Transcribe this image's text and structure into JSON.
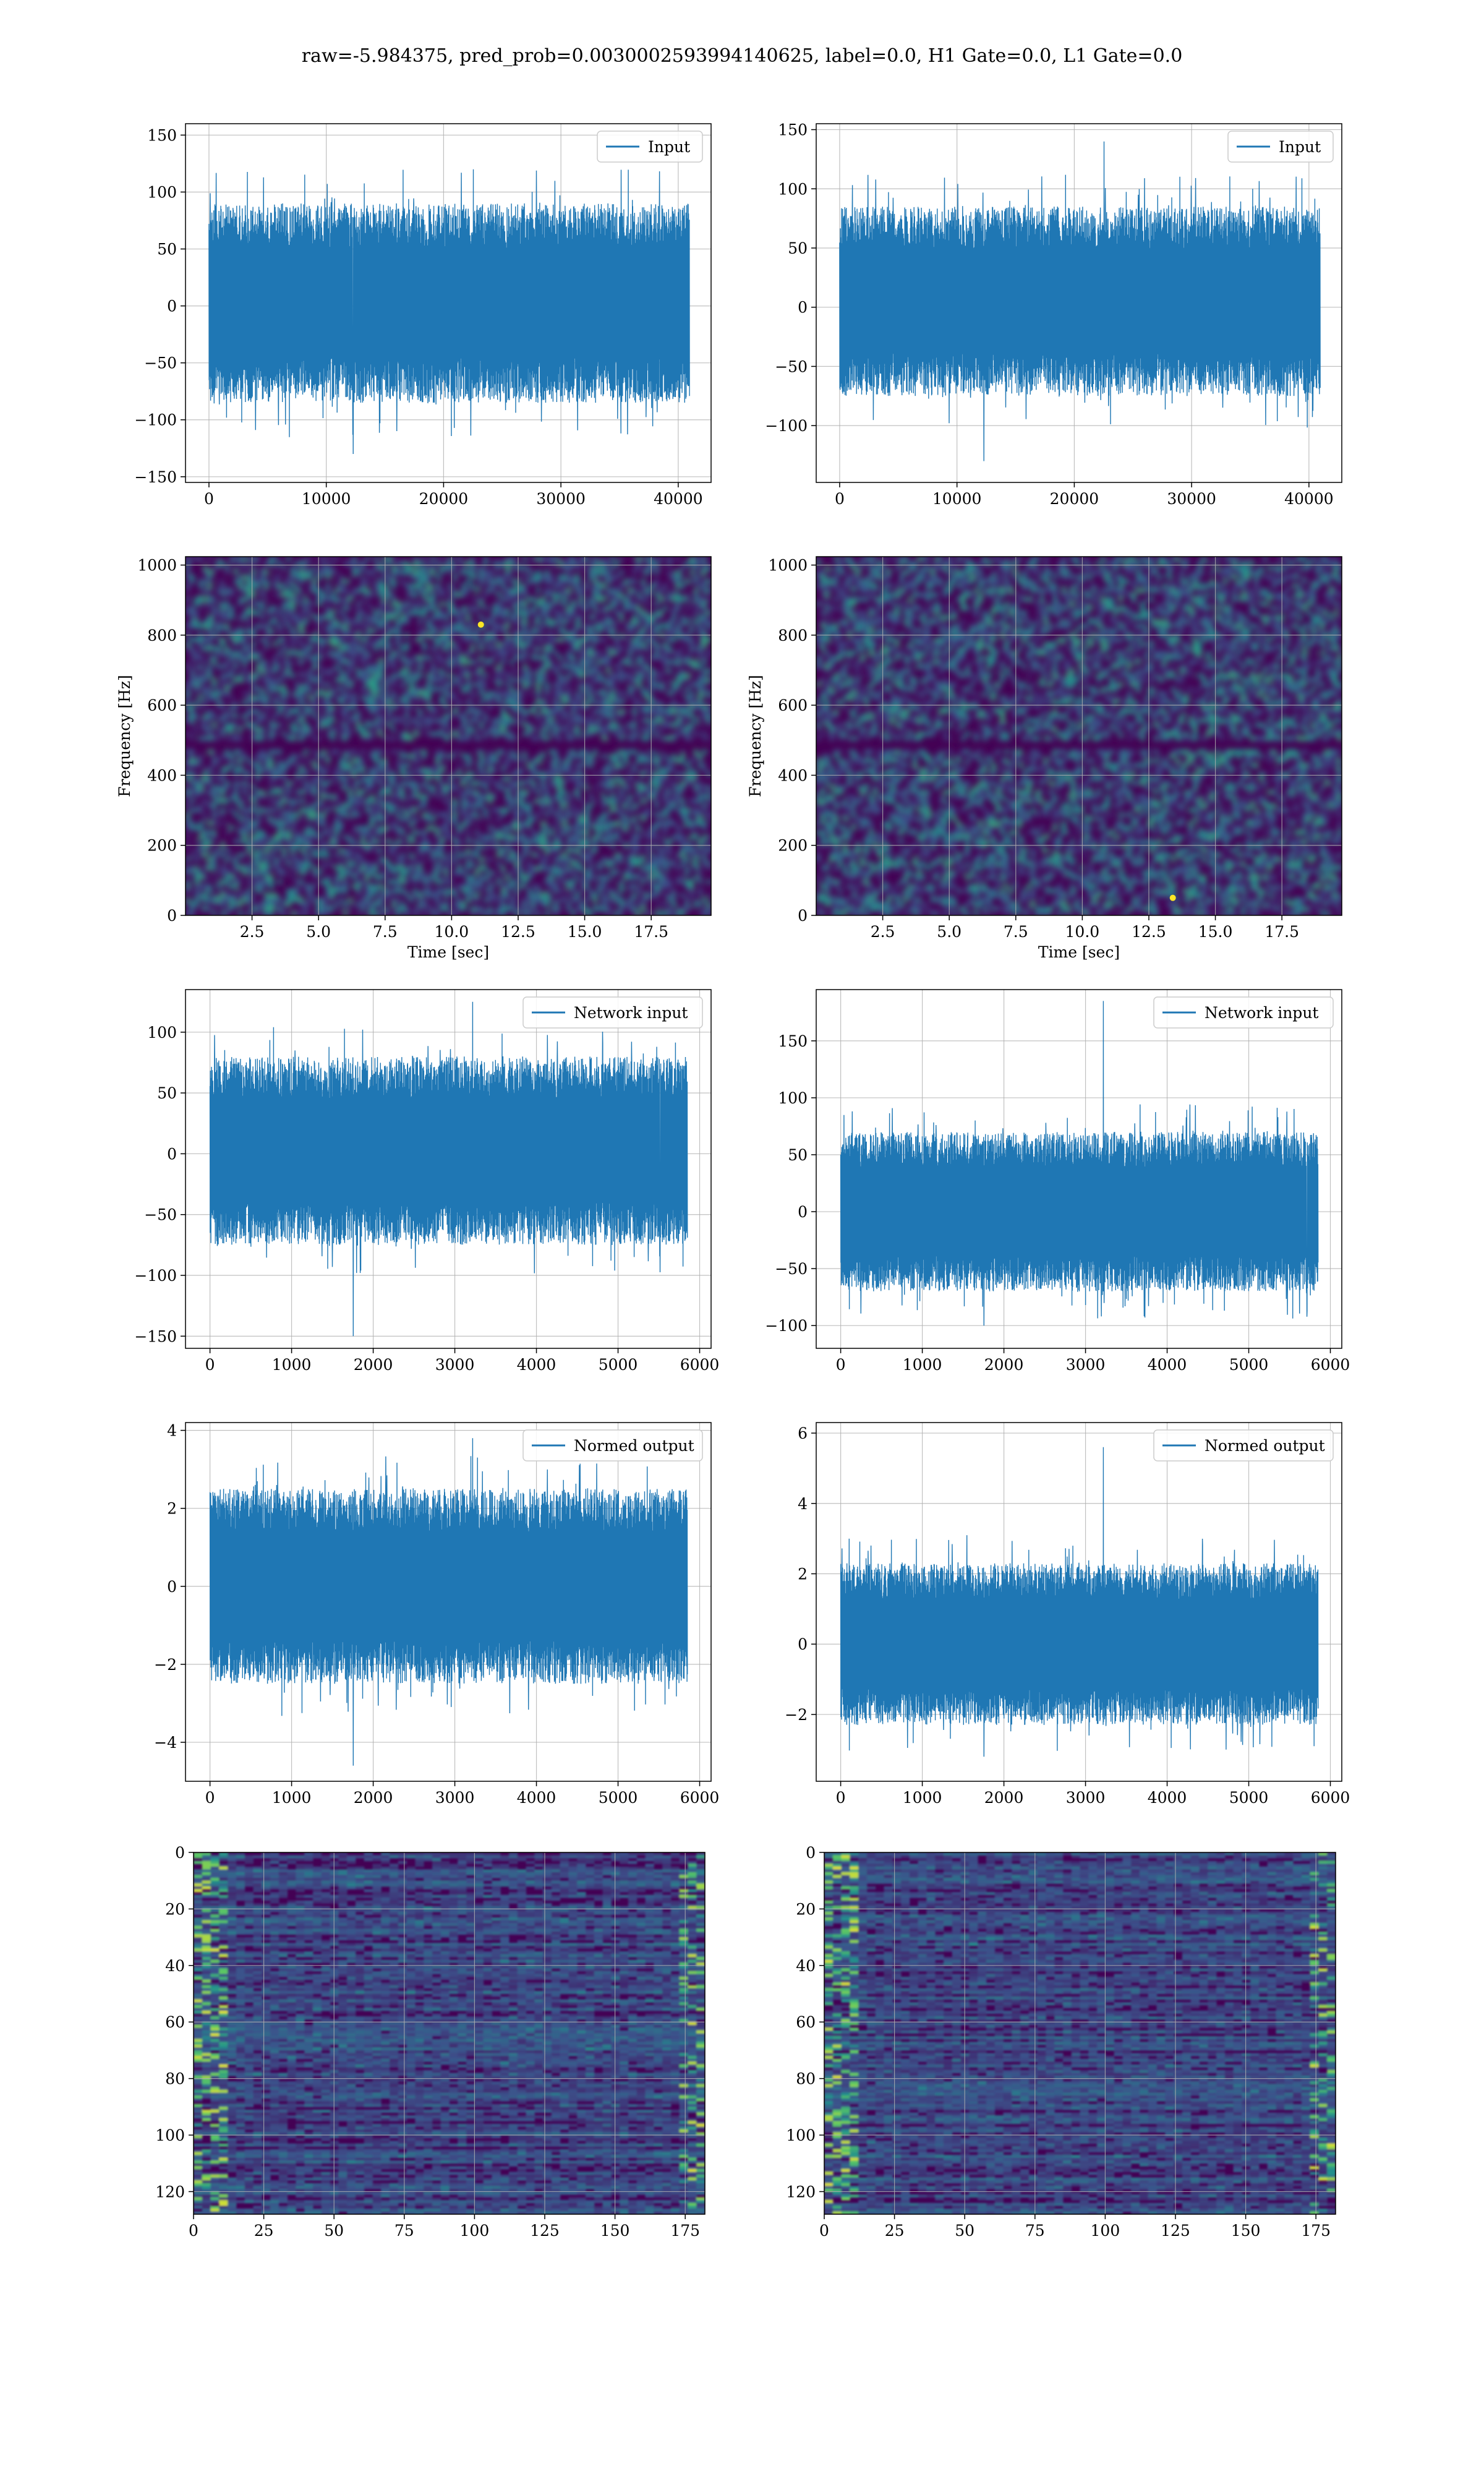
{
  "figure": {
    "suptitle": "raw=-5.984375, pred_prob=0.0030002593994140625, label=0.0, H1 Gate=0.0, L1 Gate=0.0"
  },
  "colors": {
    "line": "#1f77b4",
    "grid": "#b0b0b0",
    "viridis_low": "#440154",
    "viridis_mid": "#21918c",
    "viridis_high": "#fde725"
  },
  "chart_data": [
    {
      "id": "h1-input",
      "type": "line",
      "legend": "Input",
      "legend_pos": "upper right",
      "xlim": [
        -2000,
        42800
      ],
      "ylim": [
        -155,
        160
      ],
      "xticks": [
        0,
        10000,
        20000,
        30000,
        40000
      ],
      "yticks": [
        -150,
        -100,
        -50,
        0,
        50,
        100,
        150
      ],
      "x_range": [
        0,
        40960
      ],
      "n_points": 40960,
      "envelope": [
        -85,
        90
      ],
      "extremes": [
        120,
        -130
      ],
      "noise_sigma": 25
    },
    {
      "id": "l1-input",
      "type": "line",
      "legend": "Input",
      "legend_pos": "upper right",
      "xlim": [
        -2000,
        42800
      ],
      "ylim": [
        -148,
        155
      ],
      "xticks": [
        0,
        10000,
        20000,
        30000,
        40000
      ],
      "yticks": [
        -100,
        -50,
        0,
        50,
        100,
        150
      ],
      "x_range": [
        0,
        40960
      ],
      "n_points": 40960,
      "envelope": [
        -75,
        85
      ],
      "extremes": [
        140,
        -130
      ],
      "noise_sigma": 24
    },
    {
      "id": "h1-spectrogram",
      "type": "heatmap",
      "xlabel": "Time [sec]",
      "ylabel": "Frequency [Hz]",
      "xlim": [
        0,
        19.75
      ],
      "ylim": [
        0,
        1024
      ],
      "xticks": [
        2.5,
        5.0,
        7.5,
        10.0,
        12.5,
        15.0,
        17.5
      ],
      "yticks": [
        0,
        200,
        400,
        600,
        800,
        1000
      ],
      "colormap": "viridis",
      "dark_band_hz": [
        470,
        500
      ],
      "hot_spot": [
        11.1,
        830
      ]
    },
    {
      "id": "l1-spectrogram",
      "type": "heatmap",
      "xlabel": "Time [sec]",
      "ylabel": "Frequency [Hz]",
      "xlim": [
        0,
        19.75
      ],
      "ylim": [
        0,
        1024
      ],
      "xticks": [
        2.5,
        5.0,
        7.5,
        10.0,
        12.5,
        15.0,
        17.5
      ],
      "yticks": [
        0,
        200,
        400,
        600,
        800,
        1000
      ],
      "colormap": "viridis",
      "dark_band_hz": [
        470,
        500
      ],
      "hot_spot": [
        13.4,
        50
      ]
    },
    {
      "id": "h1-network-input",
      "type": "line",
      "legend": "Network input",
      "legend_pos": "upper right",
      "xlim": [
        -300,
        6140
      ],
      "ylim": [
        -160,
        135
      ],
      "xticks": [
        0,
        1000,
        2000,
        3000,
        4000,
        5000,
        6000
      ],
      "yticks": [
        -150,
        -100,
        -50,
        0,
        50,
        100
      ],
      "x_range": [
        0,
        5850
      ],
      "n_points": 5850,
      "envelope": [
        -75,
        80
      ],
      "extremes": [
        125,
        -150
      ],
      "noise_sigma": 25
    },
    {
      "id": "l1-network-input",
      "type": "line",
      "legend": "Network input",
      "legend_pos": "upper right",
      "xlim": [
        -300,
        6140
      ],
      "ylim": [
        -120,
        195
      ],
      "xticks": [
        0,
        1000,
        2000,
        3000,
        4000,
        5000,
        6000
      ],
      "yticks": [
        -100,
        -50,
        0,
        50,
        100,
        150
      ],
      "x_range": [
        0,
        5850
      ],
      "n_points": 5850,
      "envelope": [
        -70,
        70
      ],
      "extremes": [
        185,
        -100
      ],
      "noise_sigma": 22
    },
    {
      "id": "h1-normed-output",
      "type": "line",
      "legend": "Normed output",
      "legend_pos": "upper right",
      "xlim": [
        -300,
        6140
      ],
      "ylim": [
        -5.0,
        4.2
      ],
      "xticks": [
        0,
        1000,
        2000,
        3000,
        4000,
        5000,
        6000
      ],
      "yticks": [
        -4,
        -2,
        0,
        2,
        4
      ],
      "x_range": [
        0,
        5850
      ],
      "n_points": 5850,
      "envelope": [
        -2.5,
        2.5
      ],
      "extremes": [
        3.8,
        -4.6
      ],
      "noise_sigma": 0.8
    },
    {
      "id": "l1-normed-output",
      "type": "line",
      "legend": "Normed output",
      "legend_pos": "upper right",
      "xlim": [
        -300,
        6140
      ],
      "ylim": [
        -3.9,
        6.3
      ],
      "xticks": [
        0,
        1000,
        2000,
        3000,
        4000,
        5000,
        6000
      ],
      "yticks": [
        -2,
        0,
        2,
        4,
        6
      ],
      "x_range": [
        0,
        5850
      ],
      "n_points": 5850,
      "envelope": [
        -2.3,
        2.3
      ],
      "extremes": [
        5.6,
        -3.2
      ],
      "noise_sigma": 0.75
    },
    {
      "id": "h1-feature-map",
      "type": "heatmap",
      "xlim": [
        0,
        182
      ],
      "ylim": [
        128,
        0
      ],
      "xticks": [
        0,
        25,
        50,
        75,
        100,
        125,
        150,
        175
      ],
      "yticks": [
        0,
        20,
        40,
        60,
        80,
        100,
        120
      ],
      "colormap": "viridis",
      "shape": [
        128,
        182
      ]
    },
    {
      "id": "l1-feature-map",
      "type": "heatmap",
      "xlim": [
        0,
        182
      ],
      "ylim": [
        128,
        0
      ],
      "xticks": [
        0,
        25,
        50,
        75,
        100,
        125,
        150,
        175
      ],
      "yticks": [
        0,
        20,
        40,
        60,
        80,
        100,
        120
      ],
      "colormap": "viridis",
      "shape": [
        128,
        182
      ]
    }
  ]
}
